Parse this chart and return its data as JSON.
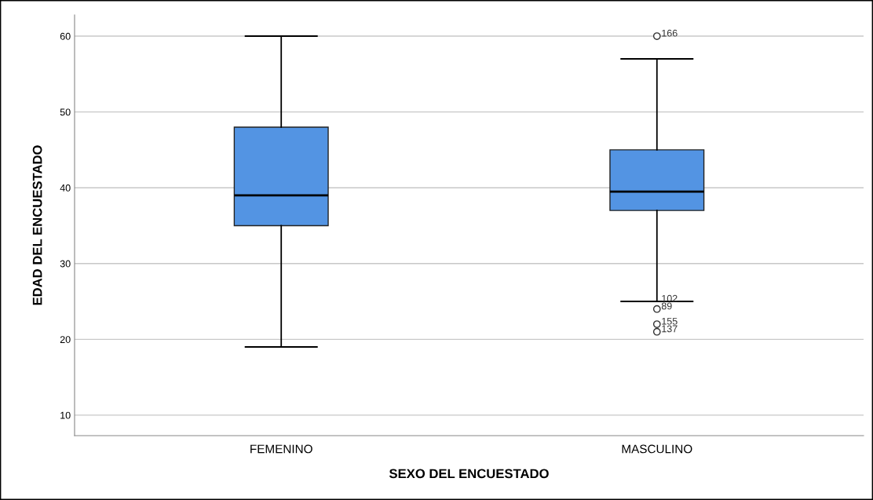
{
  "chart_data": {
    "type": "box",
    "xlabel": "SEXO DEL ENCUESTADO",
    "ylabel": "EDAD DEL ENCUESTADO",
    "categories": [
      "FEMENINO",
      "MASCULINO"
    ],
    "color": "#5394e3",
    "boxes": [
      {
        "low": 19,
        "q1": 35,
        "median": 39,
        "q3": 48,
        "high": 60
      },
      {
        "low": 25,
        "q1": 37,
        "median": 39.5,
        "q3": 45,
        "high": 57
      }
    ],
    "series": [
      {
        "type": "scatter",
        "x": [
          "MASCULINO",
          "MASCULINO",
          "MASCULINO",
          "MASCULINO"
        ],
        "values": [
          60,
          24,
          22,
          21
        ],
        "color": "#333333",
        "marker": "circle"
      }
    ],
    "ylim": [
      7.3,
      62.8
    ],
    "yticks": [
      10,
      20,
      30,
      40,
      50,
      60
    ],
    "grid": "y",
    "annotations": [
      {
        "text": "166",
        "x": "MASCULINO",
        "y": 60
      },
      {
        "text": "102",
        "x": "MASCULINO",
        "y": 25
      },
      {
        "text": "89",
        "x": "MASCULINO",
        "y": 24
      },
      {
        "text": "155",
        "x": "MASCULINO",
        "y": 22
      },
      {
        "text": "137",
        "x": "MASCULINO",
        "y": 21
      }
    ]
  }
}
